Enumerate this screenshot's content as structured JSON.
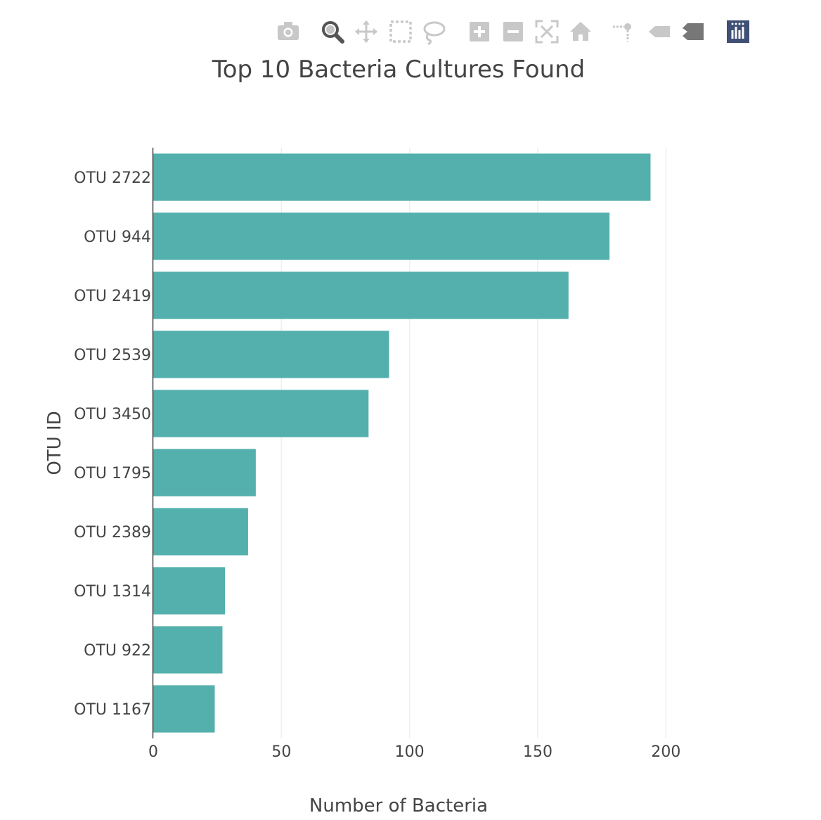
{
  "modebar": {
    "tools": [
      {
        "name": "camera-icon",
        "color": "#c8c8c8"
      },
      {
        "name": "zoom-icon",
        "color": "#555555"
      },
      {
        "name": "pan-icon",
        "color": "#c8c8c8"
      },
      {
        "name": "box-select-icon",
        "color": "#c8c8c8"
      },
      {
        "name": "lasso-select-icon",
        "color": "#c8c8c8"
      },
      {
        "name": "zoom-in-icon",
        "color": "#c8c8c8"
      },
      {
        "name": "zoom-out-icon",
        "color": "#c8c8c8"
      },
      {
        "name": "autoscale-icon",
        "color": "#c8c8c8"
      },
      {
        "name": "reset-axes-icon",
        "color": "#c8c8c8"
      },
      {
        "name": "spike-lines-icon",
        "color": "#c8c8c8"
      },
      {
        "name": "hover-closest-icon",
        "color": "#c8c8c8"
      },
      {
        "name": "hover-compare-icon",
        "color": "#777777"
      },
      {
        "name": "plotly-logo-icon",
        "color": "#3f4f75"
      }
    ]
  },
  "chart_data": {
    "type": "bar",
    "orientation": "horizontal",
    "title": "Top 10 Bacteria Cultures Found",
    "xlabel": "Number of Bacteria",
    "ylabel": "OTU ID",
    "categories": [
      "OTU 2722",
      "OTU 944",
      "OTU 2419",
      "OTU 2539",
      "OTU 3450",
      "OTU 1795",
      "OTU 2389",
      "OTU 1314",
      "OTU 922",
      "OTU 1167"
    ],
    "values": [
      194,
      178,
      162,
      92,
      84,
      40,
      37,
      28,
      27,
      24
    ],
    "xlim": [
      0,
      235
    ],
    "xticks": [
      0,
      50,
      100,
      150,
      200
    ],
    "grid": true,
    "bar_color": "#54b0ac"
  }
}
